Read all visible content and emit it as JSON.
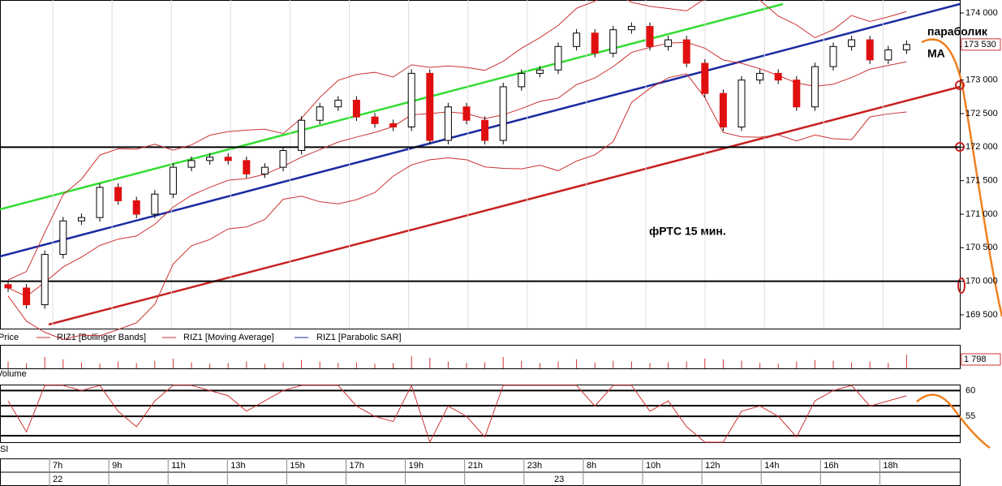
{
  "chart_data": {
    "type": "candlestick",
    "annotation": "фРТС   15 мин.",
    "notes": [
      "параболик",
      "MA"
    ],
    "legend": [
      "Price",
      "RIZ1 [Bollinger Bands]",
      "RIZ1 [Moving Average]",
      "RIZ1 [Parabolic SAR]"
    ],
    "panel_labels": [
      "Volume",
      "RSI"
    ],
    "open": [
      169950,
      169900,
      169650,
      170400,
      170900,
      170950,
      171400,
      171200,
      171000,
      171300,
      171700,
      171800,
      171850,
      171800,
      171600,
      171700,
      171950,
      172400,
      172600,
      172700,
      172450,
      172350,
      172300,
      173100,
      172100,
      172600,
      172400,
      172100,
      172900,
      173100,
      173150,
      173500,
      173700,
      173400,
      173750,
      173800,
      173500,
      173600,
      173250,
      172800,
      172300,
      173000,
      173100,
      173000,
      172600,
      173200,
      173500,
      173600,
      173300,
      173450
    ],
    "high": [
      170010,
      169960,
      170460,
      170960,
      171010,
      171460,
      171460,
      171260,
      171360,
      171760,
      171860,
      171910,
      171910,
      171860,
      171760,
      172010,
      172460,
      172660,
      172760,
      172760,
      172510,
      172410,
      173160,
      173160,
      172660,
      172660,
      172460,
      172960,
      173160,
      173210,
      173560,
      173760,
      173760,
      173810,
      173860,
      173860,
      173660,
      173660,
      173310,
      172860,
      173060,
      173160,
      173160,
      173060,
      173260,
      173560,
      173660,
      173660,
      173510,
      173590
    ],
    "low": [
      169840,
      169590,
      169590,
      170340,
      170840,
      170890,
      171140,
      170940,
      170940,
      171240,
      171640,
      171740,
      171740,
      171540,
      171540,
      171640,
      171890,
      172340,
      172540,
      172390,
      172290,
      172240,
      172240,
      172040,
      172040,
      172340,
      172040,
      172040,
      172840,
      173040,
      173090,
      173440,
      173340,
      173340,
      173690,
      173440,
      173440,
      173190,
      172740,
      172240,
      172240,
      172940,
      172940,
      172540,
      172540,
      173140,
      173440,
      173240,
      173240,
      173390
    ],
    "close": [
      169900,
      169650,
      170400,
      170900,
      170950,
      171400,
      171200,
      171000,
      171300,
      171700,
      171800,
      171850,
      171800,
      171600,
      171700,
      171950,
      172400,
      172600,
      172700,
      172450,
      172350,
      172300,
      173100,
      172100,
      172600,
      172400,
      172100,
      172900,
      173100,
      173150,
      173500,
      173700,
      173400,
      173750,
      173800,
      173500,
      173600,
      173250,
      172800,
      172300,
      173000,
      173100,
      173000,
      172600,
      173200,
      173500,
      173600,
      173300,
      173450,
      173530
    ],
    "ylim": [
      169500,
      174000
    ],
    "yticks": [
      {
        "value": 174000,
        "label": "174 000"
      },
      {
        "value": 173500,
        "label": "173 500"
      },
      {
        "value": 173000,
        "label": "173 000"
      },
      {
        "value": 172500,
        "label": "172 500"
      },
      {
        "value": 172000,
        "label": "172 000"
      },
      {
        "value": 171500,
        "label": "171 500"
      },
      {
        "value": 171000,
        "label": "171 000"
      },
      {
        "value": 170500,
        "label": "170 500"
      },
      {
        "value": 170000,
        "label": "170 000"
      },
      {
        "value": 169500,
        "label": "169 500"
      }
    ],
    "last_price": {
      "value": 173530,
      "label": "173 530"
    },
    "levels": [
      172000,
      170000
    ],
    "volume": [
      900,
      700,
      1500,
      1200,
      800,
      600,
      900,
      700,
      1000,
      1300,
      800,
      600,
      700,
      900,
      600,
      800,
      1100,
      900,
      700,
      800,
      600,
      700,
      1600,
      1400,
      900,
      700,
      800,
      1500,
      1000,
      700,
      900,
      1200,
      800,
      1000,
      900,
      700,
      800,
      900,
      1300,
      1200,
      1000,
      700,
      600,
      900,
      1100,
      1000,
      800,
      900,
      700,
      1798
    ],
    "volume_ylim": [
      0,
      3000
    ],
    "volume_label": {
      "value": 1798,
      "label": "1 798"
    },
    "rsi": [
      58,
      52,
      61,
      61,
      60,
      61,
      56,
      53,
      58,
      61,
      61,
      60,
      59,
      56,
      58,
      60,
      61,
      61,
      61,
      57,
      55,
      54,
      61,
      50,
      57,
      55,
      51,
      61,
      61,
      61,
      61,
      61,
      57,
      61,
      61,
      56,
      58,
      53,
      50,
      50,
      56,
      57,
      55,
      51,
      58,
      60,
      61,
      57,
      58,
      59
    ],
    "rsi_ylim": [
      50,
      61
    ],
    "rsi_yticks": [
      60,
      55
    ],
    "time_labels": [
      "7h",
      "9h",
      "11h",
      "13h",
      "15h",
      "17h",
      "19h",
      "21h",
      "23h",
      "8h",
      "10h",
      "12h",
      "14h",
      "16h",
      "18h"
    ],
    "date_labels": [
      "22",
      "23"
    ]
  }
}
